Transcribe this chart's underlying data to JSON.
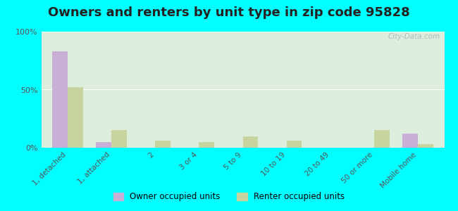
{
  "title": "Owners and renters by unit type in zip code 95828",
  "categories": [
    "1, detached",
    "1, attached",
    "2",
    "3 or 4",
    "5 to 9",
    "10 to 19",
    "20 to 49",
    "50 or more",
    "Mobile home"
  ],
  "owner_values": [
    83,
    5,
    0,
    0,
    0,
    0,
    0,
    0,
    12
  ],
  "renter_values": [
    52,
    15,
    6,
    5,
    10,
    6,
    0,
    15,
    3
  ],
  "owner_color": "#c9aed6",
  "renter_color": "#c8d4a0",
  "background_color": "#ddeedd",
  "ylim": [
    0,
    100
  ],
  "yticks": [
    0,
    50,
    100
  ],
  "ytick_labels": [
    "0%",
    "50%",
    "100%"
  ],
  "owner_label": "Owner occupied units",
  "renter_label": "Renter occupied units",
  "bar_width": 0.35,
  "title_fontsize": 13,
  "outer_bg": "#00ffff"
}
